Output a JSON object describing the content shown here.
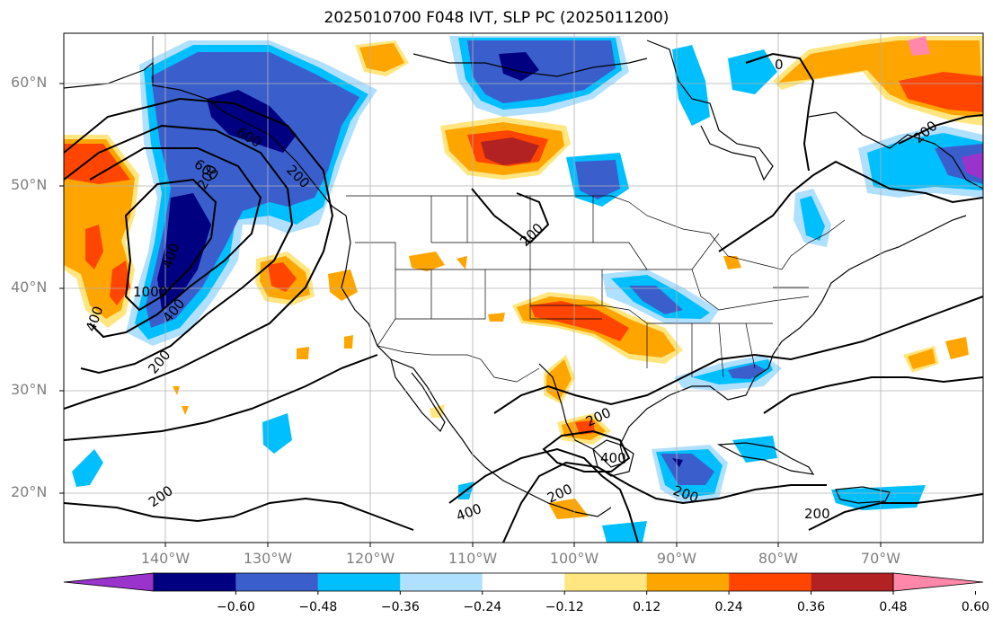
{
  "title": "2025010700 F048 IVT, SLP PC (2025011200)",
  "lat_labels": [
    "60°N",
    "50°N",
    "40°N",
    "30°N",
    "20°N"
  ],
  "lon_labels": [
    "140°W",
    "130°W",
    "120°W",
    "110°W",
    "100°W",
    "90°W",
    "80°W",
    "70°W"
  ],
  "colorbar": {
    "ticks": [
      "−0.60",
      "−0.48",
      "−0.36",
      "−0.24",
      "−0.12",
      "0.12",
      "0.24",
      "0.36",
      "0.48",
      "0.60"
    ],
    "colors": [
      "#9933cc",
      "#000080",
      "#3a5fcd",
      "#00bfff",
      "#b0e0ff",
      "#ffffff",
      "#ffe680",
      "#ffa500",
      "#ff4500",
      "#b22222",
      "#ff88aa"
    ]
  },
  "contour_labels": [
    "600",
    "600",
    "1000",
    "400",
    "400",
    "200",
    "200",
    "200",
    "200",
    "400",
    "200",
    "200",
    "400",
    "200",
    "200",
    "400",
    "0",
    "200",
    "200"
  ]
}
